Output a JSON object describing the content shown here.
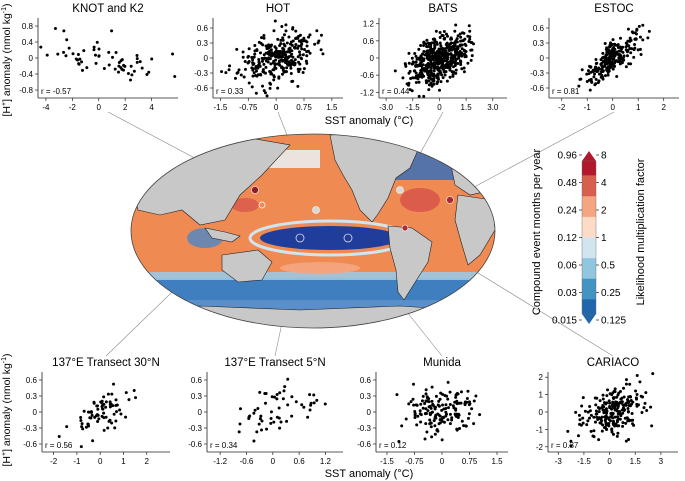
{
  "figure": {
    "top_xlabel": "SST anomaly (°C)",
    "bottom_xlabel": "SST anomaly (°C)",
    "ylabel_prefix": "[H",
    "ylabel_plus": "+",
    "ylabel_mid": "] anomaly (nmol kg",
    "ylabel_exp": "-1",
    "ylabel_end": ")"
  },
  "colorbar": {
    "left_label": "Compound event months per year",
    "right_label": "Likelihood multiplication factor",
    "left_ticks": [
      "0.96",
      "0.48",
      "0.24",
      "0.12",
      "0.06",
      "0.03",
      "0.015"
    ],
    "right_ticks": [
      "8",
      "4",
      "2",
      "1",
      "0.5",
      "0.25",
      "0.125"
    ],
    "colors_top_to_bottom": [
      "#b2182b",
      "#d6604d",
      "#f4a582",
      "#fddbc7",
      "#d1e5f0",
      "#92c5de",
      "#4393c3",
      "#2166ac"
    ]
  },
  "map": {
    "land_color": "#c8c8c8",
    "ocean_base_color": "#ef8a52",
    "station_names": [
      "KNOT and K2",
      "HOT",
      "BATS",
      "ESTOC",
      "137°E Transect 30°N",
      "137°E Transect 5°N",
      "Munida",
      "CARIACO"
    ]
  },
  "chart_data": [
    {
      "type": "scatter",
      "title": "KNOT and K2",
      "r_label": "r = -0.57",
      "r": -0.57,
      "n": 60,
      "seed": 11,
      "x_center": 0.5,
      "x_spread": 2.2,
      "xlim": [
        -4.6,
        6.0
      ],
      "ylim": [
        -1.0,
        1.0
      ],
      "xticks": [
        -4,
        -2,
        0,
        2,
        4
      ],
      "xtick_labels": [
        "-4",
        "-2",
        "0",
        "2",
        "4"
      ],
      "yticks": [
        -0.8,
        -0.4,
        0,
        0.4,
        0.8
      ],
      "ytick_labels": [
        "-0.8",
        "-0.4",
        "0",
        "0.4",
        "0.8"
      ]
    },
    {
      "type": "scatter",
      "title": "HOT",
      "r_label": "r = 0.33",
      "r": 0.33,
      "n": 300,
      "seed": 23,
      "x_center": 0.0,
      "x_spread": 0.5,
      "xlim": [
        -1.7,
        1.8
      ],
      "ylim": [
        -0.8,
        0.8
      ],
      "xticks": [
        -1.5,
        -0.75,
        0,
        0.75,
        1.5
      ],
      "xtick_labels": [
        "-1.5",
        "-0.75",
        "0",
        "0.75",
        "1.5"
      ],
      "yticks": [
        -0.6,
        -0.3,
        0,
        0.3,
        0.6
      ],
      "ytick_labels": [
        "-0.6",
        "-0.3",
        "0",
        "0.3",
        "0.6"
      ]
    },
    {
      "type": "scatter",
      "title": "BATS",
      "r_label": "r = 0.44",
      "r": 0.44,
      "n": 500,
      "seed": 37,
      "x_center": 0.0,
      "x_spread": 0.8,
      "xlim": [
        -3.4,
        3.8
      ],
      "ylim": [
        -1.4,
        1.4
      ],
      "xticks": [
        -3.0,
        -1.5,
        0,
        1.5,
        3.0
      ],
      "xtick_labels": [
        "-3.0",
        "-1.5",
        "0",
        "1.5",
        "3.0"
      ],
      "yticks": [
        -1.2,
        -0.6,
        0,
        0.6,
        1.2
      ],
      "ytick_labels": [
        "-1.2",
        "-0.6",
        "0",
        "0.6",
        "1.2"
      ]
    },
    {
      "type": "scatter",
      "title": "ESTOC",
      "r_label": "r = 0.81",
      "r": 0.81,
      "n": 250,
      "seed": 41,
      "x_center": 0.0,
      "x_spread": 0.55,
      "xlim": [
        -2.5,
        2.6
      ],
      "ylim": [
        -0.8,
        0.8
      ],
      "xticks": [
        -2,
        -1,
        0,
        1,
        2
      ],
      "xtick_labels": [
        "-2",
        "-1",
        "0",
        "1",
        "2"
      ],
      "yticks": [
        -0.6,
        -0.3,
        0,
        0.3,
        0.6
      ],
      "ytick_labels": [
        "-0.6",
        "-0.3",
        "0",
        "0.3",
        "0.6"
      ]
    },
    {
      "type": "scatter",
      "title": "137°E Transect 30°N",
      "r_label": "r = 0.56",
      "r": 0.56,
      "n": 75,
      "seed": 53,
      "x_center": 0.1,
      "x_spread": 0.7,
      "xlim": [
        -2.5,
        3.0
      ],
      "ylim": [
        -0.75,
        0.75
      ],
      "xticks": [
        -2,
        -1,
        0,
        1,
        2
      ],
      "xtick_labels": [
        "-2",
        "-1",
        "0",
        "1",
        "2"
      ],
      "yticks": [
        -0.6,
        -0.3,
        0,
        0.3,
        0.6
      ],
      "ytick_labels": [
        "-0.6",
        "-0.3",
        "0",
        "0.3",
        "0.6"
      ]
    },
    {
      "type": "scatter",
      "title": "137°E Transect 5°N",
      "r_label": "r = 0.34",
      "r": 0.34,
      "n": 55,
      "seed": 67,
      "x_center": 0.1,
      "x_spread": 0.5,
      "xlim": [
        -1.5,
        1.6
      ],
      "ylim": [
        -0.75,
        0.75
      ],
      "xticks": [
        -1.2,
        -0.6,
        0,
        0.6,
        1.2
      ],
      "xtick_labels": [
        "-1.2",
        "-0.6",
        "0",
        "0.6",
        "1.2"
      ],
      "yticks": [
        -0.6,
        -0.3,
        0,
        0.3,
        0.6
      ],
      "ytick_labels": [
        "-0.6",
        "-0.3",
        "0",
        "0.3",
        "0.6"
      ]
    },
    {
      "type": "scatter",
      "title": "Munida",
      "r_label": "r = 0.12",
      "r": 0.12,
      "n": 160,
      "seed": 71,
      "x_center": 0.0,
      "x_spread": 0.55,
      "xlim": [
        -1.8,
        1.8
      ],
      "ylim": [
        -0.75,
        0.75
      ],
      "xticks": [
        -1.5,
        -0.75,
        0,
        0.75,
        1.5
      ],
      "xtick_labels": [
        "-1.5",
        "-0.75",
        "0",
        "0.75",
        "1.5"
      ],
      "yticks": [
        -0.6,
        -0.3,
        0,
        0.3,
        0.6
      ],
      "ytick_labels": [
        "-0.6",
        "-0.3",
        "0",
        "0.3",
        "0.6"
      ]
    },
    {
      "type": "scatter",
      "title": "CARIACO",
      "r_label": "r = 0.37",
      "r": 0.37,
      "n": 230,
      "seed": 83,
      "x_center": 0.2,
      "x_spread": 0.95,
      "xlim": [
        -3.6,
        4.0
      ],
      "ylim": [
        -2.3,
        2.3
      ],
      "xticks": [
        -3,
        -1.5,
        0,
        1.5,
        3
      ],
      "xtick_labels": [
        "-3",
        "-1.5",
        "0",
        "1.5",
        "3"
      ],
      "yticks": [
        -2,
        -1,
        0,
        1,
        2
      ],
      "ytick_labels": [
        "-2",
        "-1",
        "0",
        "1",
        "2"
      ]
    }
  ]
}
